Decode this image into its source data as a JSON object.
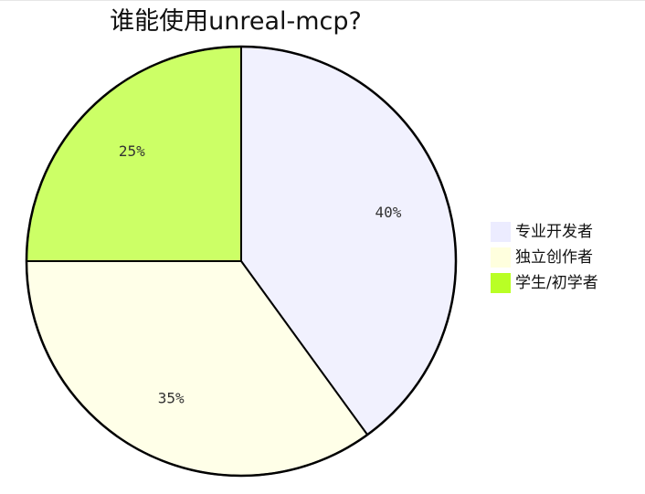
{
  "chart_data": {
    "type": "pie",
    "title": "谁能使用unreal-mcp?",
    "slices": [
      {
        "label": "专业开发者",
        "value": 40,
        "display": "40%",
        "color": "#ECECFF"
      },
      {
        "label": "独立创作者",
        "value": 35,
        "display": "35%",
        "color": "#FFFFDE"
      },
      {
        "label": "学生/初学者",
        "value": 25,
        "display": "25%",
        "color": "#B9FF25"
      }
    ],
    "slice_fill": [
      "#F1F1FE",
      "#FFFFE8",
      "#CCFF66"
    ],
    "stroke_color": "#000000",
    "legend_position": "right"
  }
}
